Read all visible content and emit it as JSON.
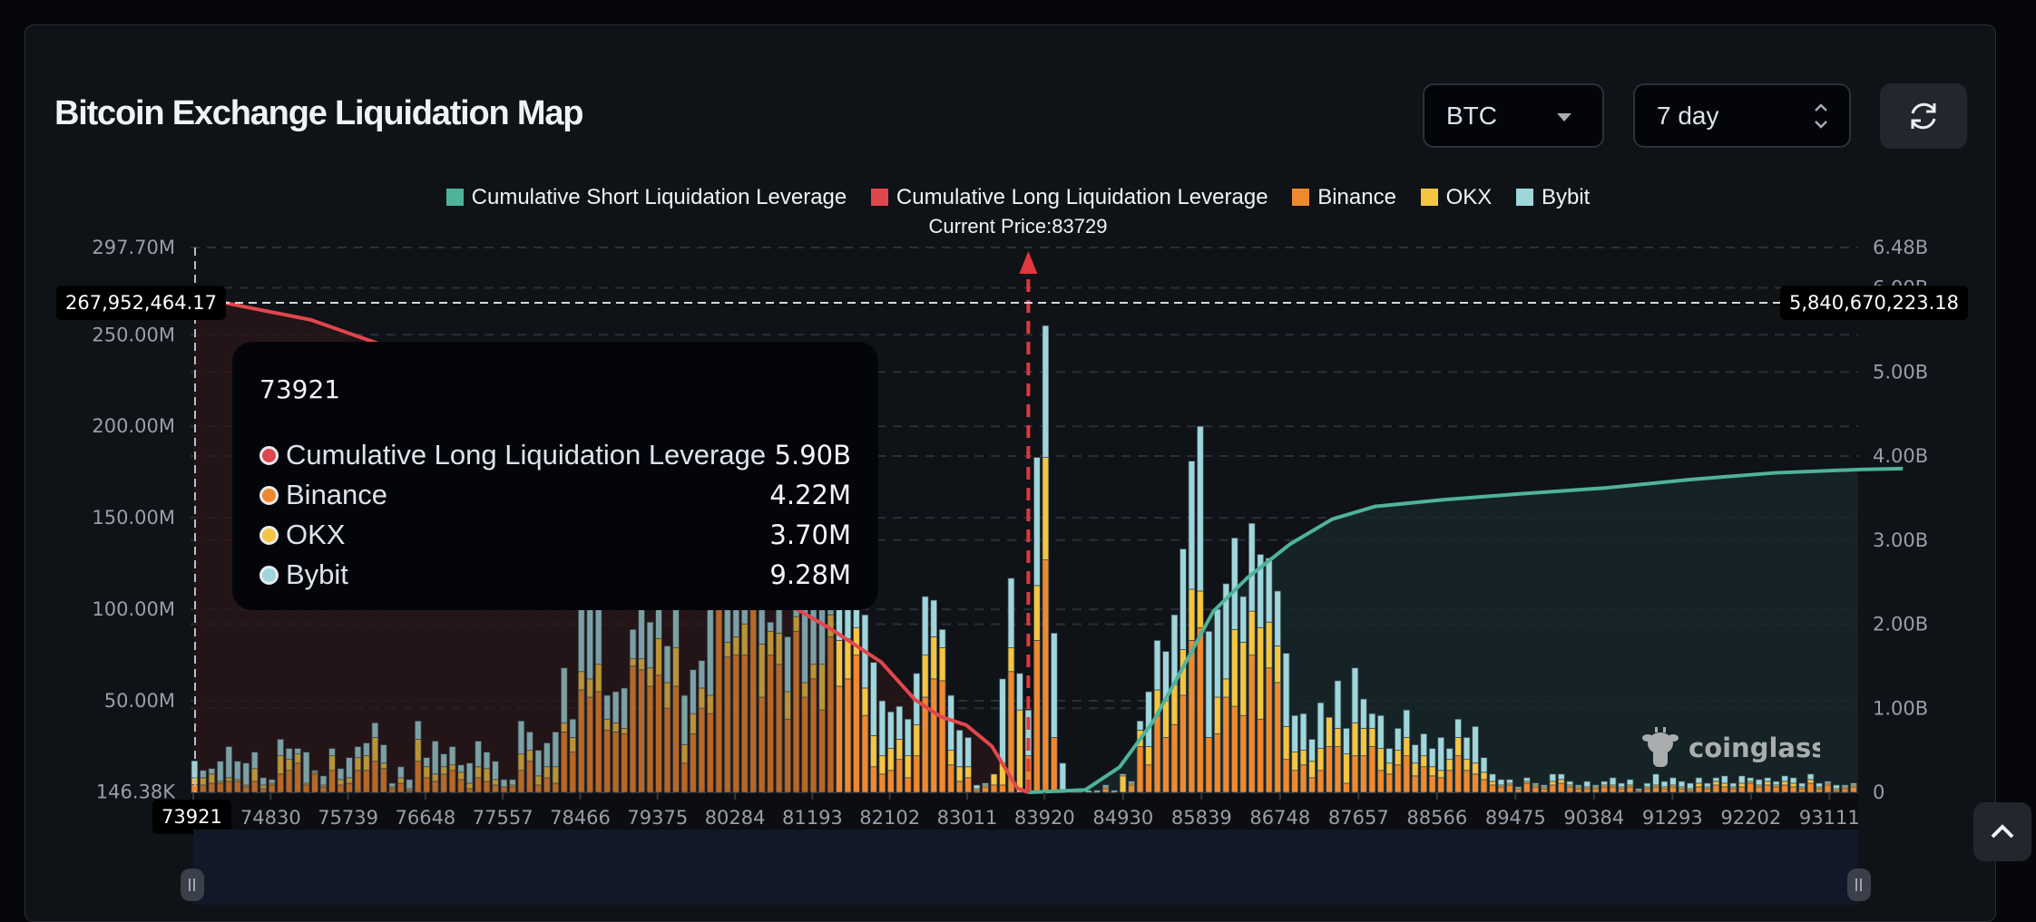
{
  "header": {
    "title": "Bitcoin Exchange Liquidation Map",
    "coin_select": {
      "value": "BTC"
    },
    "range_select": {
      "value": "7 day"
    },
    "refresh_icon": "refresh-icon",
    "scroll_top_icon": "chevron-up-icon"
  },
  "legend": [
    {
      "label": "Cumulative Short Liquidation Leverage",
      "color": "#4fb39a"
    },
    {
      "label": "Cumulative Long Liquidation Leverage",
      "color": "#e0474c"
    },
    {
      "label": "Binance",
      "color": "#f0892e"
    },
    {
      "label": "OKX",
      "color": "#f5c542"
    },
    {
      "label": "Bybit",
      "color": "#9ed6dc"
    }
  ],
  "current_price_label": "Current Price:83729",
  "crosshair": {
    "left_value": "267,952,464.17",
    "right_value": "5,840,670,223.18",
    "x_value": "73921"
  },
  "tooltip": {
    "title": "73921",
    "rows": [
      {
        "label": "Cumulative Long Liquidation Leverage",
        "value": "5.90B",
        "color": "#e0474c"
      },
      {
        "label": "Binance",
        "value": "4.22M",
        "color": "#f0892e"
      },
      {
        "label": "OKX",
        "value": "3.70M",
        "color": "#f5c542"
      },
      {
        "label": "Bybit",
        "value": "9.28M",
        "color": "#9ed6dc"
      }
    ]
  },
  "watermark": "coinglass",
  "chart_data": {
    "type": "bar",
    "title": "Bitcoin Exchange Liquidation Map",
    "current_price": 83729,
    "x_start": 73921,
    "x_step": 101,
    "x_ticks": [
      "73921",
      "74830",
      "75739",
      "76648",
      "77557",
      "78466",
      "79375",
      "80284",
      "81193",
      "82102",
      "83011",
      "83920",
      "84930",
      "85839",
      "86748",
      "87657",
      "88566",
      "89475",
      "90384",
      "91293",
      "92202",
      "93111"
    ],
    "y_left": {
      "ticks": [
        "297.70M",
        "250.00M",
        "200.00M",
        "150.00M",
        "100.00M",
        "50.00M",
        "146.38K"
      ],
      "tick_values": [
        297.7,
        250,
        200,
        150,
        100,
        50,
        0.14638
      ],
      "range": [
        0,
        297.7
      ],
      "unit": "M"
    },
    "y_right": {
      "ticks": [
        "6.48B",
        "6.00B",
        "5.00B",
        "4.00B",
        "3.00B",
        "2.00B",
        "1.00B",
        "0"
      ],
      "tick_values": [
        6.48,
        6,
        5,
        4,
        3,
        2,
        1,
        0
      ],
      "range": [
        0,
        6.48
      ],
      "unit": "B"
    },
    "series_names": [
      "Binance",
      "OKX",
      "Bybit"
    ],
    "stack_colors": [
      "#f0892e",
      "#f5c542",
      "#9ed6dc"
    ],
    "bars_M": [
      [
        4.22,
        3.7,
        9.28
      ],
      [
        4,
        4,
        4
      ],
      [
        5,
        5,
        3
      ],
      [
        5,
        1,
        11
      ],
      [
        6,
        2,
        17
      ],
      [
        6,
        1,
        10
      ],
      [
        3,
        1,
        12
      ],
      [
        6,
        7,
        9
      ],
      [
        2,
        2,
        4
      ],
      [
        4,
        1,
        2
      ],
      [
        10,
        10,
        9
      ],
      [
        12,
        6,
        6
      ],
      [
        16,
        5,
        3
      ],
      [
        4,
        1,
        17
      ],
      [
        10,
        1,
        1
      ],
      [
        3,
        1,
        5
      ],
      [
        12,
        8,
        4
      ],
      [
        4,
        3,
        6
      ],
      [
        5,
        3,
        11
      ],
      [
        12,
        7,
        6
      ],
      [
        12,
        8,
        7
      ],
      [
        17,
        13,
        8
      ],
      [
        13,
        3,
        10
      ],
      [
        2,
        1,
        2
      ],
      [
        5,
        3,
        6
      ],
      [
        1,
        1,
        5
      ],
      [
        17,
        12,
        10
      ],
      [
        8,
        6,
        5
      ],
      [
        6,
        4,
        18
      ],
      [
        10,
        4,
        7
      ],
      [
        12,
        3,
        10
      ],
      [
        7,
        4,
        4
      ],
      [
        2,
        3,
        11
      ],
      [
        8,
        6,
        14
      ],
      [
        6,
        7,
        9
      ],
      [
        4,
        3,
        10
      ],
      [
        3,
        0,
        4
      ],
      [
        3,
        1,
        3
      ],
      [
        12,
        9,
        18
      ],
      [
        17,
        6,
        10
      ],
      [
        4,
        5,
        14
      ],
      [
        8,
        6,
        13
      ],
      [
        5,
        9,
        19
      ],
      [
        33,
        5,
        30
      ],
      [
        22,
        8,
        10
      ],
      [
        56,
        10,
        40
      ],
      [
        52,
        10,
        40
      ],
      [
        55,
        15,
        35
      ],
      [
        34,
        6,
        13
      ],
      [
        33,
        5,
        17
      ],
      [
        32,
        3,
        22
      ],
      [
        69,
        4,
        16
      ],
      [
        67,
        6,
        40
      ],
      [
        58,
        10,
        25
      ],
      [
        64,
        20,
        33
      ],
      [
        46,
        14,
        20
      ],
      [
        58,
        21,
        40
      ],
      [
        16,
        10,
        27
      ],
      [
        32,
        11,
        24
      ],
      [
        46,
        11,
        15
      ],
      [
        43,
        10,
        48
      ],
      [
        105,
        10,
        5
      ],
      [
        74,
        8,
        50
      ],
      [
        75,
        10,
        40
      ],
      [
        75,
        17,
        50
      ],
      [
        100,
        20,
        30
      ],
      [
        52,
        29,
        30
      ],
      [
        75,
        13,
        5
      ],
      [
        70,
        17,
        32
      ],
      [
        40,
        15,
        30
      ],
      [
        88,
        8,
        4
      ],
      [
        52,
        8,
        40
      ],
      [
        62,
        8,
        30
      ],
      [
        45,
        25,
        40
      ],
      [
        85,
        12,
        20
      ],
      [
        58,
        25,
        20
      ],
      [
        62,
        22,
        25
      ],
      [
        75,
        15,
        10
      ],
      [
        42,
        15,
        40
      ],
      [
        14,
        17,
        40
      ],
      [
        10,
        10,
        30
      ],
      [
        12,
        12,
        20
      ],
      [
        18,
        11,
        18
      ],
      [
        8,
        12,
        20
      ],
      [
        20,
        17,
        28
      ],
      [
        52,
        23,
        32
      ],
      [
        62,
        23,
        20
      ],
      [
        61,
        18,
        10
      ],
      [
        15,
        8,
        30
      ],
      [
        6,
        8,
        20
      ],
      [
        8,
        6,
        16
      ],
      [
        1,
        1,
        2
      ],
      [
        3,
        1,
        1
      ],
      [
        4,
        6,
        0
      ],
      [
        4,
        12,
        46
      ],
      [
        66,
        13,
        38
      ],
      [
        0,
        45,
        20
      ],
      [
        20,
        0,
        25
      ],
      [
        83,
        30,
        70
      ],
      [
        127,
        56,
        72
      ],
      [
        30,
        0,
        57
      ],
      [
        0,
        0,
        16
      ],
      [
        1,
        0,
        0
      ],
      [
        0,
        0,
        2
      ],
      [
        0,
        0,
        1
      ],
      [
        0,
        0,
        1
      ],
      [
        2,
        1,
        1
      ],
      [
        0,
        0,
        1
      ],
      [
        0,
        9,
        1
      ],
      [
        4,
        1,
        1
      ],
      [
        25,
        9,
        5
      ],
      [
        15,
        10,
        30
      ],
      [
        42,
        14,
        27
      ],
      [
        30,
        20,
        27
      ],
      [
        37,
        22,
        38
      ],
      [
        53,
        25,
        55
      ],
      [
        83,
        28,
        70
      ],
      [
        90,
        20,
        90
      ],
      [
        30,
        0,
        58
      ],
      [
        32,
        20,
        48
      ],
      [
        52,
        10,
        52
      ],
      [
        47,
        42,
        50
      ],
      [
        42,
        40,
        25
      ],
      [
        75,
        24,
        48
      ],
      [
        40,
        50,
        40
      ],
      [
        68,
        25,
        35
      ],
      [
        60,
        20,
        30
      ],
      [
        18,
        18,
        40
      ],
      [
        12,
        10,
        20
      ],
      [
        15,
        8,
        20
      ],
      [
        8,
        9,
        12
      ],
      [
        12,
        12,
        25
      ],
      [
        25,
        16,
        0
      ],
      [
        25,
        10,
        26
      ],
      [
        5,
        16,
        14
      ],
      [
        20,
        18,
        30
      ],
      [
        20,
        15,
        16
      ],
      [
        25,
        10,
        8
      ],
      [
        12,
        12,
        18
      ],
      [
        10,
        6,
        8
      ],
      [
        15,
        8,
        12
      ],
      [
        20,
        10,
        15
      ],
      [
        9,
        7,
        10
      ],
      [
        14,
        6,
        12
      ],
      [
        9,
        5,
        10
      ],
      [
        8,
        4,
        18
      ],
      [
        12,
        6,
        6
      ],
      [
        20,
        10,
        10
      ],
      [
        12,
        6,
        12
      ],
      [
        10,
        6,
        20
      ],
      [
        7,
        4,
        8
      ],
      [
        4,
        2,
        4
      ],
      [
        3,
        1,
        3
      ],
      [
        4,
        1,
        2
      ],
      [
        2,
        0,
        1
      ],
      [
        5,
        1,
        2
      ],
      [
        3,
        1,
        1
      ],
      [
        2,
        1,
        1
      ],
      [
        4,
        2,
        4
      ],
      [
        5,
        2,
        3
      ],
      [
        3,
        1,
        2
      ],
      [
        2,
        1,
        1
      ],
      [
        2,
        1,
        3
      ],
      [
        2,
        1,
        1
      ],
      [
        3,
        1,
        2
      ],
      [
        3,
        1,
        4
      ],
      [
        2,
        1,
        2
      ],
      [
        3,
        1,
        3
      ],
      [
        1,
        0,
        1
      ],
      [
        2,
        1,
        2
      ],
      [
        3,
        1,
        6
      ],
      [
        2,
        1,
        3
      ],
      [
        3,
        1,
        4
      ],
      [
        2,
        1,
        3
      ],
      [
        1,
        1,
        3
      ],
      [
        3,
        2,
        3
      ],
      [
        2,
        1,
        2
      ],
      [
        4,
        2,
        2
      ],
      [
        3,
        2,
        4
      ],
      [
        2,
        1,
        2
      ],
      [
        3,
        2,
        4
      ],
      [
        5,
        1,
        2
      ],
      [
        3,
        1,
        3
      ],
      [
        4,
        2,
        2
      ],
      [
        3,
        1,
        2
      ],
      [
        4,
        2,
        3
      ],
      [
        3,
        2,
        3
      ],
      [
        2,
        1,
        2
      ],
      [
        5,
        2,
        3
      ],
      [
        2,
        1,
        2
      ],
      [
        4,
        1,
        1
      ],
      [
        1,
        1,
        2
      ],
      [
        2,
        1,
        1
      ],
      [
        3,
        1,
        1
      ]
    ],
    "cumulative_long_B": {
      "start": 5.9,
      "end_price": 83729,
      "note": "decreasing from 5.90B at 73921 to 0 at current price"
    },
    "cumulative_short_B": {
      "start_price": 83729,
      "end": 3.85,
      "note": "increasing from 0 at current price to ~3.85B at 94000"
    },
    "long_curve_points": [
      [
        73921,
        5.9
      ],
      [
        74500,
        5.78
      ],
      [
        75300,
        5.62
      ],
      [
        76200,
        5.3
      ],
      [
        77000,
        4.7
      ],
      [
        78000,
        4.0
      ],
      [
        79000,
        3.4
      ],
      [
        80000,
        2.75
      ],
      [
        80800,
        2.3
      ],
      [
        81400,
        1.95
      ],
      [
        82000,
        1.55
      ],
      [
        82400,
        1.1
      ],
      [
        82700,
        0.9
      ],
      [
        83000,
        0.8
      ],
      [
        83300,
        0.55
      ],
      [
        83600,
        0.05
      ],
      [
        83729,
        0.0
      ]
    ],
    "short_curve_points": [
      [
        83729,
        0.0
      ],
      [
        84400,
        0.03
      ],
      [
        84800,
        0.3
      ],
      [
        85200,
        0.85
      ],
      [
        85500,
        1.4
      ],
      [
        85900,
        2.15
      ],
      [
        86300,
        2.55
      ],
      [
        86800,
        2.95
      ],
      [
        87300,
        3.25
      ],
      [
        87800,
        3.4
      ],
      [
        88600,
        3.48
      ],
      [
        89500,
        3.55
      ],
      [
        90500,
        3.62
      ],
      [
        91500,
        3.72
      ],
      [
        92500,
        3.8
      ],
      [
        93500,
        3.84
      ],
      [
        94000,
        3.85
      ]
    ]
  }
}
